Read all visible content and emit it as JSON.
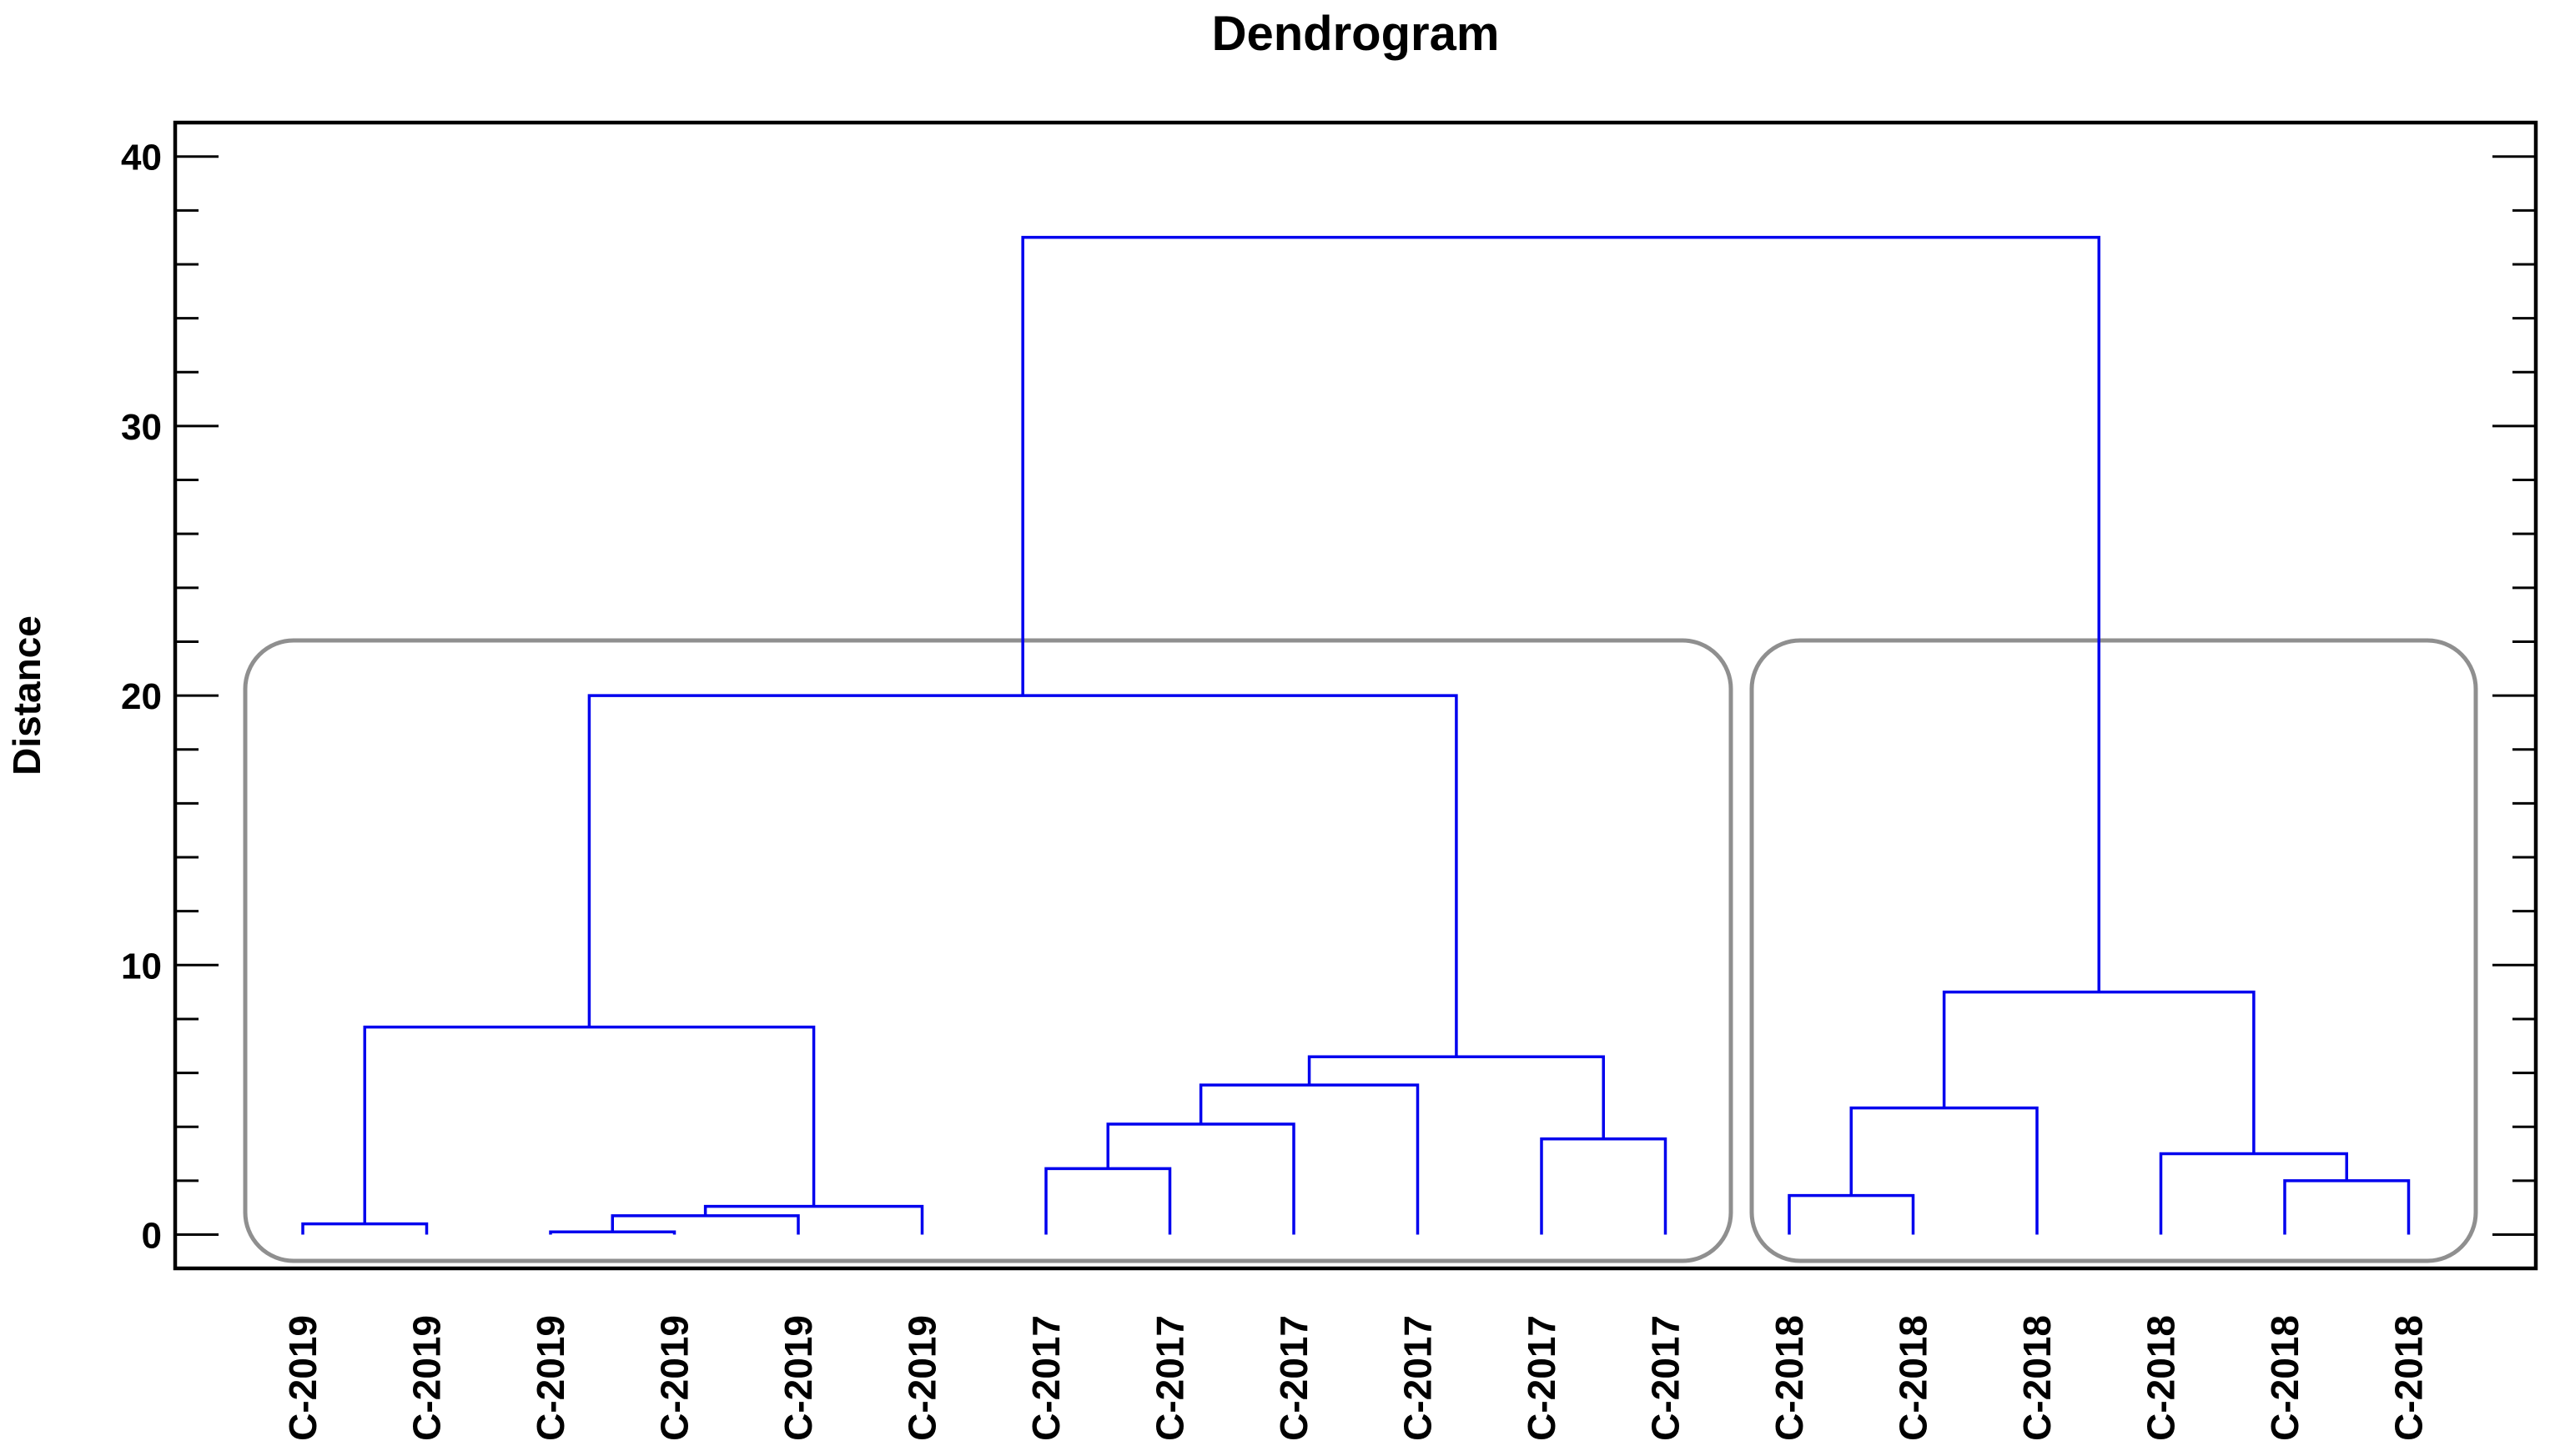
{
  "title": "Dendrogram",
  "y_axis": {
    "label": "Distance",
    "tick_labels": [
      "0",
      "10",
      "20",
      "30",
      "40"
    ],
    "major_ticks": [
      0,
      10,
      20,
      30,
      40
    ],
    "minor_tick_step": 2,
    "minor_tick_max": 40
  },
  "colors": {
    "link": "#0000ee",
    "frame": "#000000",
    "cluster_box": "#8f8f8f",
    "text": "#000000",
    "background": "#ffffff"
  },
  "chart_data": {
    "type": "dendrogram",
    "title": "Dendrogram",
    "ylabel": "Distance",
    "ylim": [
      -1.3,
      41.3
    ],
    "yticks_major": [
      0,
      10,
      20,
      30,
      40
    ],
    "ytick_minor_step": 2,
    "grid": "off",
    "legend": "none",
    "leaves": [
      {
        "id": "L1",
        "label": "C-2019"
      },
      {
        "id": "L2",
        "label": "C-2019"
      },
      {
        "id": "L3",
        "label": "C-2019"
      },
      {
        "id": "L4",
        "label": "C-2019"
      },
      {
        "id": "L5",
        "label": "C-2019"
      },
      {
        "id": "L6",
        "label": "C-2019"
      },
      {
        "id": "L7",
        "label": "C-2017"
      },
      {
        "id": "L8",
        "label": "C-2017"
      },
      {
        "id": "L9",
        "label": "C-2017"
      },
      {
        "id": "L10",
        "label": "C-2017"
      },
      {
        "id": "L11",
        "label": "C-2017"
      },
      {
        "id": "L12",
        "label": "C-2017"
      },
      {
        "id": "L13",
        "label": "C-2018"
      },
      {
        "id": "L14",
        "label": "C-2018"
      },
      {
        "id": "L15",
        "label": "C-2018"
      },
      {
        "id": "L16",
        "label": "C-2018"
      },
      {
        "id": "L17",
        "label": "C-2018"
      },
      {
        "id": "L18",
        "label": "C-2018"
      }
    ],
    "merges": [
      {
        "id": "A",
        "children": [
          "L1",
          "L2"
        ],
        "height": 0.4
      },
      {
        "id": "B",
        "children": [
          "L3",
          "L4"
        ],
        "height": 0.1
      },
      {
        "id": "C",
        "children": [
          "B",
          "L5"
        ],
        "height": 0.7
      },
      {
        "id": "D",
        "children": [
          "C",
          "L6"
        ],
        "height": 1.05
      },
      {
        "id": "E",
        "children": [
          "A",
          "D"
        ],
        "height": 7.7
      },
      {
        "id": "F",
        "children": [
          "L7",
          "L8"
        ],
        "height": 2.45
      },
      {
        "id": "G",
        "children": [
          "F",
          "L9"
        ],
        "height": 4.1
      },
      {
        "id": "H",
        "children": [
          "G",
          "L10"
        ],
        "height": 5.55
      },
      {
        "id": "I",
        "children": [
          "L11",
          "L12"
        ],
        "height": 3.55
      },
      {
        "id": "J",
        "children": [
          "H",
          "I"
        ],
        "height": 6.6
      },
      {
        "id": "K",
        "children": [
          "E",
          "J"
        ],
        "height": 20.0
      },
      {
        "id": "RA",
        "children": [
          "L13",
          "L14"
        ],
        "height": 1.45
      },
      {
        "id": "RB",
        "children": [
          "RA",
          "L15"
        ],
        "height": 4.7
      },
      {
        "id": "RC",
        "children": [
          "L17",
          "L18"
        ],
        "height": 2.0
      },
      {
        "id": "RD",
        "children": [
          "L16",
          "RC"
        ],
        "height": 3.0
      },
      {
        "id": "RE",
        "children": [
          "RB",
          "RD"
        ],
        "height": 9.0
      },
      {
        "id": "ROOT",
        "children": [
          "K",
          "RE"
        ],
        "height": 37.0
      }
    ],
    "cluster_boxes": [
      {
        "name": "cluster-box-1",
        "encloses_leaves": [
          "L1",
          "L12"
        ]
      },
      {
        "name": "cluster-box-2",
        "encloses_leaves": [
          "L13",
          "L18"
        ]
      }
    ]
  }
}
